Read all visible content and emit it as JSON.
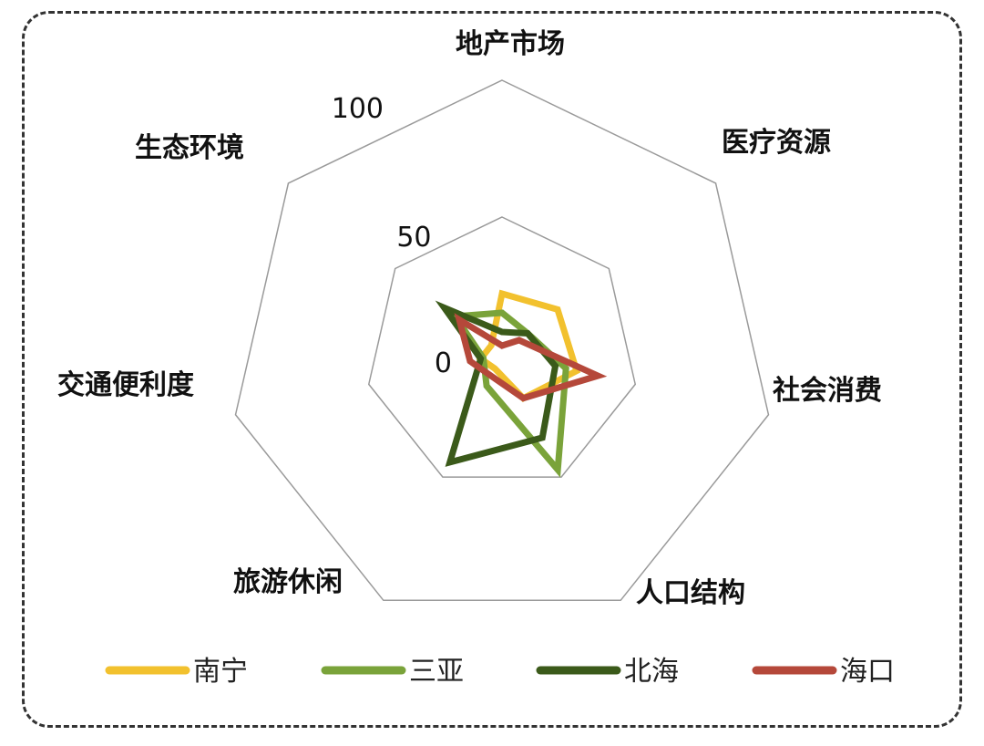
{
  "chart_data": {
    "type": "radar",
    "axes": [
      "地产市场",
      "医疗资源",
      "社会消费",
      "人口结构",
      "旅游休闲",
      "交通便利度",
      "生态环境"
    ],
    "rlim": [
      0,
      100
    ],
    "ticks": [
      {
        "value": 100,
        "label": "100"
      },
      {
        "value": 50,
        "label": "50"
      },
      {
        "value": 0,
        "label": "0"
      }
    ],
    "series": [
      {
        "name": "南宁",
        "color": "#f2c12e",
        "values": [
          22,
          26,
          28,
          18,
          6,
          8,
          5
        ]
      },
      {
        "name": "三亚",
        "color": "#7aa33a",
        "values": [
          15,
          12,
          24,
          47,
          13,
          7,
          22
        ]
      },
      {
        "name": "北海",
        "color": "#3b5a1a",
        "values": [
          8,
          12,
          20,
          34,
          44,
          8,
          27
        ]
      },
      {
        "name": "海口",
        "color": "#b5483a",
        "values": [
          3,
          8,
          36,
          18,
          9,
          12,
          20
        ]
      }
    ],
    "legend_position": "bottom"
  }
}
